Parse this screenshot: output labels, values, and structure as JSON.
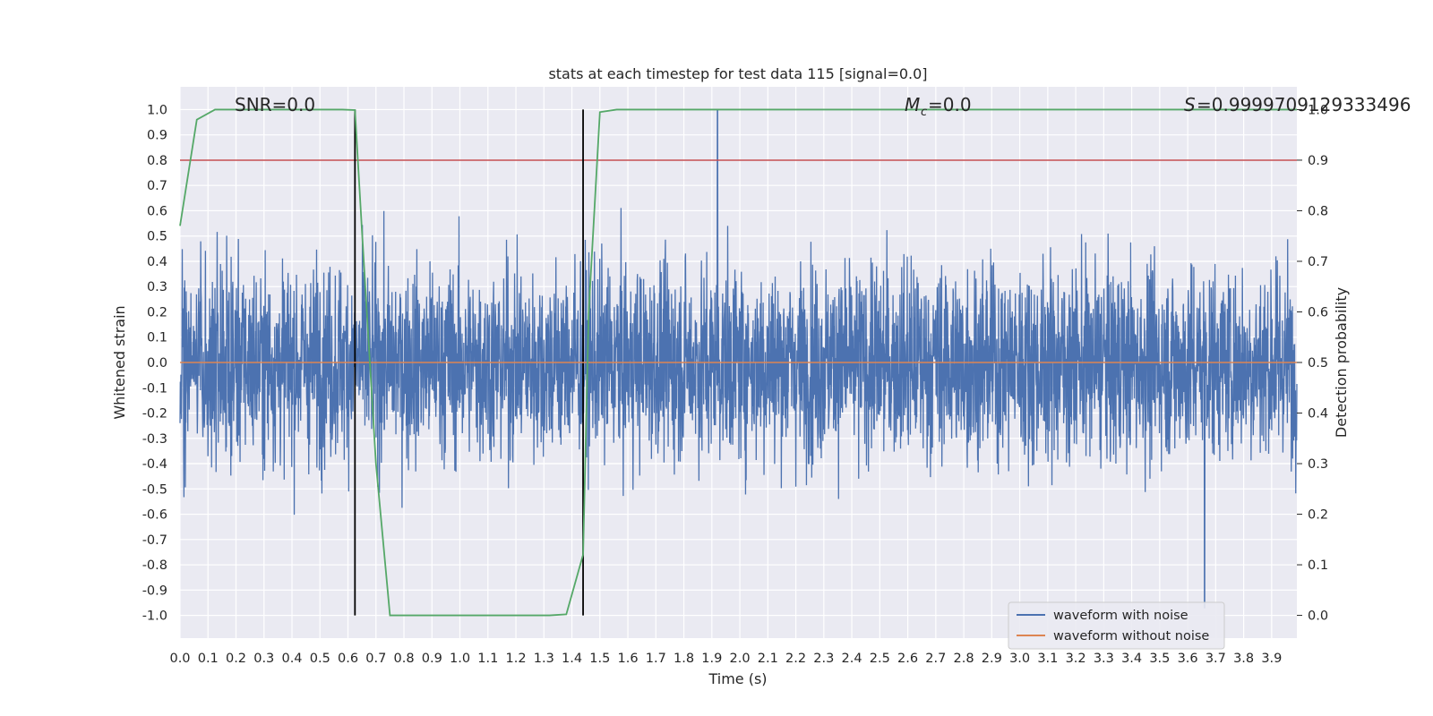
{
  "chart_data": {
    "type": "line",
    "title": "stats at each timestep for test data 115 [signal=0.0]",
    "xlabel": "Time (s)",
    "ylabel": "Whitened strain",
    "y2label": "Detection probability",
    "xlim": [
      0.0,
      3.99
    ],
    "ylim": [
      -1.09,
      1.09
    ],
    "y2lim": [
      -0.045,
      1.045
    ],
    "x_ticks": [
      "0.0",
      "0.1",
      "0.2",
      "0.3",
      "0.4",
      "0.5",
      "0.6",
      "0.7",
      "0.8",
      "0.9",
      "1.0",
      "1.1",
      "1.2",
      "1.3",
      "1.4",
      "1.5",
      "1.6",
      "1.7",
      "1.8",
      "1.9",
      "2.0",
      "2.1",
      "2.2",
      "2.3",
      "2.4",
      "2.5",
      "2.6",
      "2.7",
      "2.8",
      "2.9",
      "3.0",
      "3.1",
      "3.2",
      "3.3",
      "3.4",
      "3.5",
      "3.6",
      "3.7",
      "3.8",
      "3.9"
    ],
    "y_ticks": [
      "1.0",
      "0.9",
      "0.8",
      "0.7",
      "0.6",
      "0.5",
      "0.4",
      "0.3",
      "0.2",
      "0.1",
      "0.0",
      "-0.1",
      "-0.2",
      "-0.3",
      "-0.4",
      "-0.5",
      "-0.6",
      "-0.7",
      "-0.8",
      "-0.9",
      "-1.0"
    ],
    "y2_ticks": [
      "1.0",
      "0.9",
      "0.8",
      "0.7",
      "0.6",
      "0.5",
      "0.4",
      "0.3",
      "0.2",
      "0.1",
      "0.0"
    ],
    "annotations": {
      "snr": "SNR=0.0",
      "mc": "=0.0",
      "s": "=0.9999709129333496"
    },
    "grid": true,
    "legend_placement": "lower-right",
    "series": [
      {
        "name": "waveform with noise",
        "color": "#4c72b0",
        "axis": "left",
        "description_peaks": {
          "max": 1.0,
          "max_at": 1.92,
          "min": -0.97,
          "min_at": 3.66
        }
      },
      {
        "name": "waveform without noise",
        "color": "#dd8452",
        "axis": "left",
        "values_constant": 0.0
      },
      {
        "name": "",
        "color": "#55a868",
        "axis": "right",
        "x": [
          0.0,
          0.06,
          0.125,
          0.19,
          0.3,
          0.5,
          0.58,
          0.625,
          0.65,
          0.7,
          0.75,
          0.85,
          1.0,
          1.2,
          1.32,
          1.38,
          1.44,
          1.46,
          1.5,
          1.56,
          1.7,
          2.0,
          3.0,
          3.99
        ],
        "values": [
          0.77,
          0.98,
          1.0,
          1.0,
          1.0,
          1.0,
          1.0,
          0.999,
          0.76,
          0.3,
          0.0,
          0.0,
          0.0,
          0.0,
          0.0,
          0.002,
          0.12,
          0.6,
          0.995,
          1.0,
          1.0,
          1.0,
          1.0,
          1.0
        ]
      }
    ],
    "reference_lines": {
      "red_horizontal_y2": 0.9,
      "red_color": "#c44e52",
      "black_verticals_x": [
        0.625,
        1.44
      ]
    }
  }
}
